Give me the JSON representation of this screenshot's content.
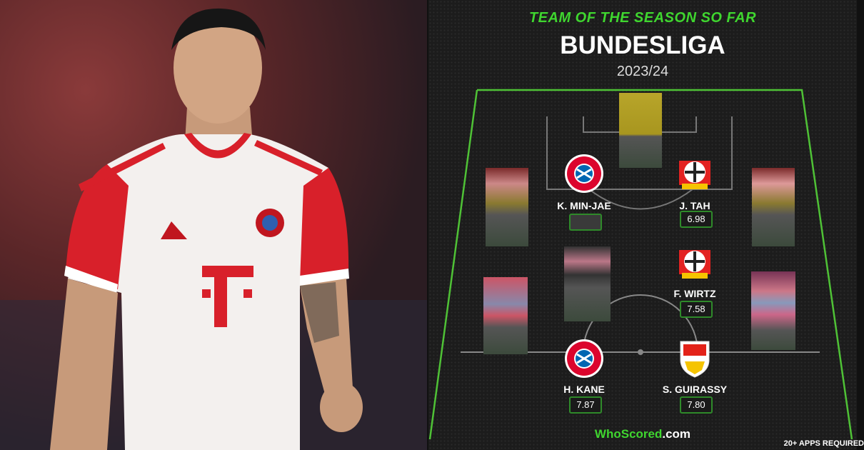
{
  "photo": {
    "description_alt": ""
  },
  "graphic": {
    "subtitle": "TEAM OF THE SEASON SO FAR",
    "league": "BUNDESLIGA",
    "season": "2023/24",
    "players": [
      {
        "name": "K. MIN-JAE",
        "club": "bayern",
        "rating": ""
      },
      {
        "name": "J. TAH",
        "club": "leverkusen",
        "rating": "6.98"
      },
      {
        "name": "F. WIRTZ",
        "club": "leverkusen",
        "rating": "7.58"
      },
      {
        "name": "H. KANE",
        "club": "bayern",
        "rating": "7.87"
      },
      {
        "name": "S. GUIRASSY",
        "club": "stuttgart",
        "rating": "7.80"
      }
    ],
    "logo_word": "WhoScored",
    "logo_tld": ".com",
    "footnote": "20+ APPS REQUIRED",
    "colors": {
      "accent": "#3fd62f",
      "background": "#1c1c1c",
      "bayern": "#dc052d",
      "leverkusen": "#e32221",
      "stuttgart": "#e32219"
    }
  }
}
